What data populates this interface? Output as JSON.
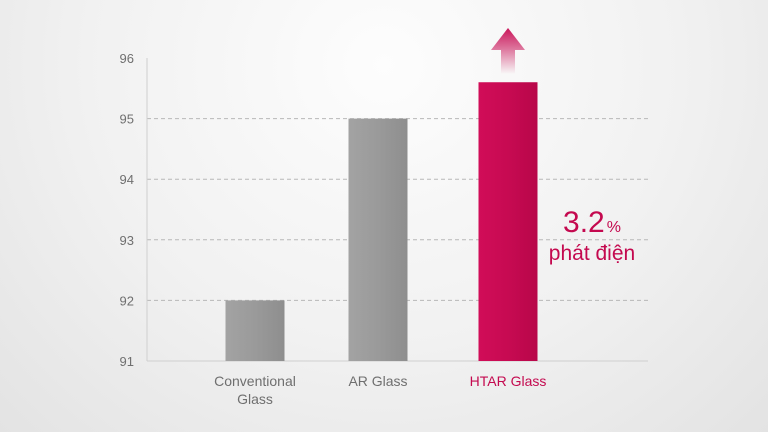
{
  "chart_data": {
    "type": "bar",
    "title": "",
    "xlabel": "",
    "ylabel": "",
    "ylim": [
      91,
      96
    ],
    "yticks": [
      91,
      92,
      93,
      94,
      95,
      96
    ],
    "grid": "horizontal-dashed",
    "categories": [
      {
        "lines": [
          "Conventional",
          "Glass"
        ],
        "color": "#6f6f6f"
      },
      {
        "lines": [
          "AR Glass"
        ],
        "color": "#6f6f6f"
      },
      {
        "lines": [
          "HTAR Glass"
        ],
        "color": "#c4094f"
      }
    ],
    "values": [
      92.0,
      95.0,
      95.6
    ],
    "bar_colors": [
      "#9a9a9a",
      "#9a9a9a",
      "#c70a52"
    ],
    "annotation": {
      "value": "3.2",
      "unit": "%",
      "text": "phát điện",
      "color": "#c4094f",
      "arrow": "up-arrow-icon"
    }
  }
}
